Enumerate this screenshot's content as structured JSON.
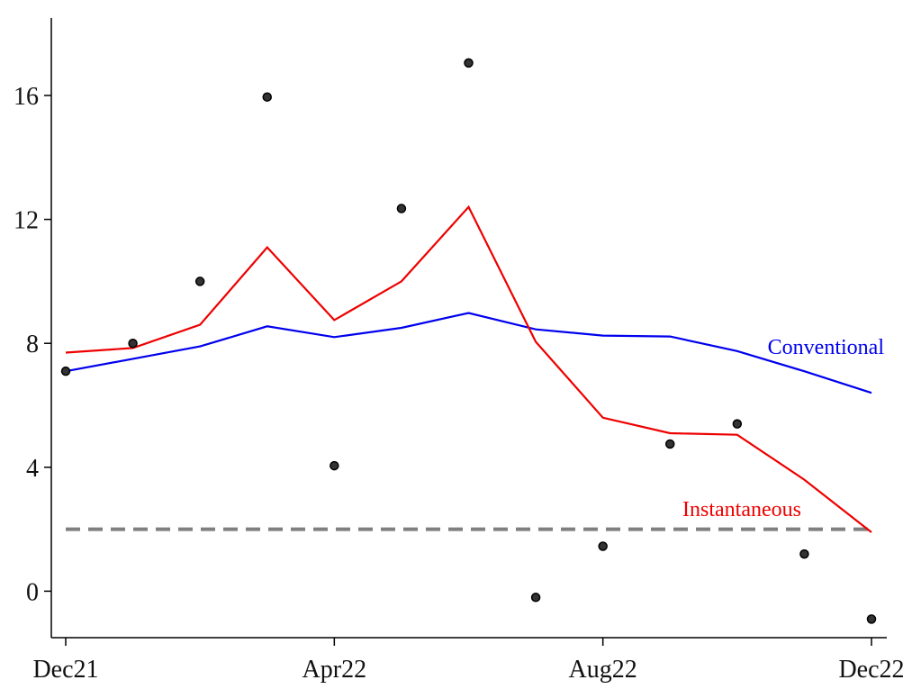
{
  "chart_data": {
    "type": "line",
    "title": "",
    "xlabel": "",
    "ylabel": "",
    "x": [
      "2021-12",
      "2022-01",
      "2022-02",
      "2022-03",
      "2022-04",
      "2022-05",
      "2022-06",
      "2022-07",
      "2022-08",
      "2022-09",
      "2022-10",
      "2022-11",
      "2022-12"
    ],
    "x_ticks": [
      {
        "x": "2021-12",
        "label": "Dec21"
      },
      {
        "x": "2022-04",
        "label": "Apr22"
      },
      {
        "x": "2022-08",
        "label": "Aug22"
      },
      {
        "x": "2022-12",
        "label": "Dec22"
      }
    ],
    "y_ticks": [
      0,
      4,
      8,
      12,
      16
    ],
    "ylim": [
      -1.5,
      18.5
    ],
    "grid": false,
    "series": [
      {
        "name": "Conventional",
        "kind": "line",
        "color": "#0000ee",
        "values": [
          7.1,
          7.5,
          7.9,
          8.55,
          8.2,
          8.5,
          8.98,
          8.45,
          8.25,
          8.22,
          7.75,
          7.1,
          6.4
        ]
      },
      {
        "name": "Instantaneous",
        "kind": "line",
        "color": "#ee0000",
        "values": [
          7.7,
          7.85,
          8.6,
          11.1,
          8.75,
          10.0,
          12.4,
          8.05,
          5.6,
          5.1,
          5.05,
          3.6,
          1.9
        ]
      },
      {
        "name": "",
        "kind": "scatter",
        "color": "#333333",
        "values": [
          7.1,
          8.0,
          10.0,
          15.95,
          4.05,
          12.35,
          17.05,
          -0.2,
          1.45,
          4.75,
          5.4,
          1.2,
          -0.9
        ]
      },
      {
        "name": "",
        "kind": "reference-line",
        "color": "#7f7f7f",
        "value": 2.0
      }
    ]
  }
}
